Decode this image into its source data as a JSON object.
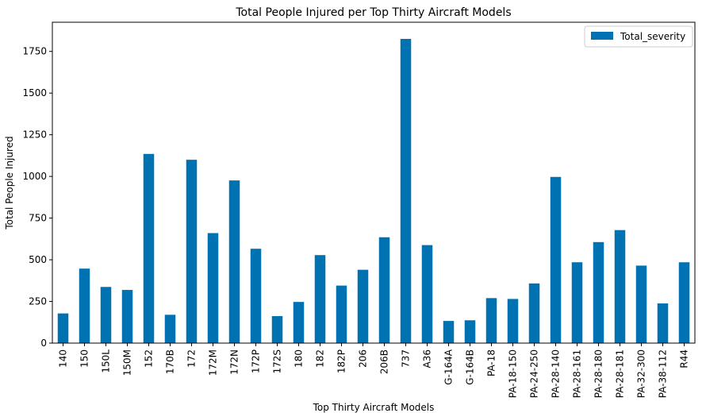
{
  "chart_data": {
    "type": "bar",
    "title": "Total People Injured per Top Thirty Aircraft Models",
    "xlabel": "Top Thirty Aircraft Models",
    "ylabel": "Total People Injured",
    "ylim": [
      0,
      1925
    ],
    "yticks": [
      0,
      250,
      500,
      750,
      1000,
      1250,
      1500,
      1750
    ],
    "legend_position": "top-right",
    "grid": false,
    "categories": [
      "140",
      "150",
      "150L",
      "150M",
      "152",
      "170B",
      "172",
      "172M",
      "172N",
      "172P",
      "172S",
      "180",
      "182",
      "182P",
      "206",
      "206B",
      "737",
      "A36",
      "G-164A",
      "G-164B",
      "PA-18",
      "PA-18-150",
      "PA-24-250",
      "PA-28-140",
      "PA-28-161",
      "PA-28-180",
      "PA-28-181",
      "PA-32-300",
      "PA-38-112",
      "R44"
    ],
    "series": [
      {
        "name": "Total_severity",
        "color": "#0072b2",
        "values": [
          178,
          447,
          337,
          319,
          1135,
          170,
          1100,
          660,
          976,
          566,
          162,
          247,
          528,
          345,
          440,
          635,
          1825,
          588,
          133,
          137,
          270,
          265,
          358,
          997,
          485,
          606,
          678,
          465,
          238,
          485
        ]
      }
    ]
  }
}
